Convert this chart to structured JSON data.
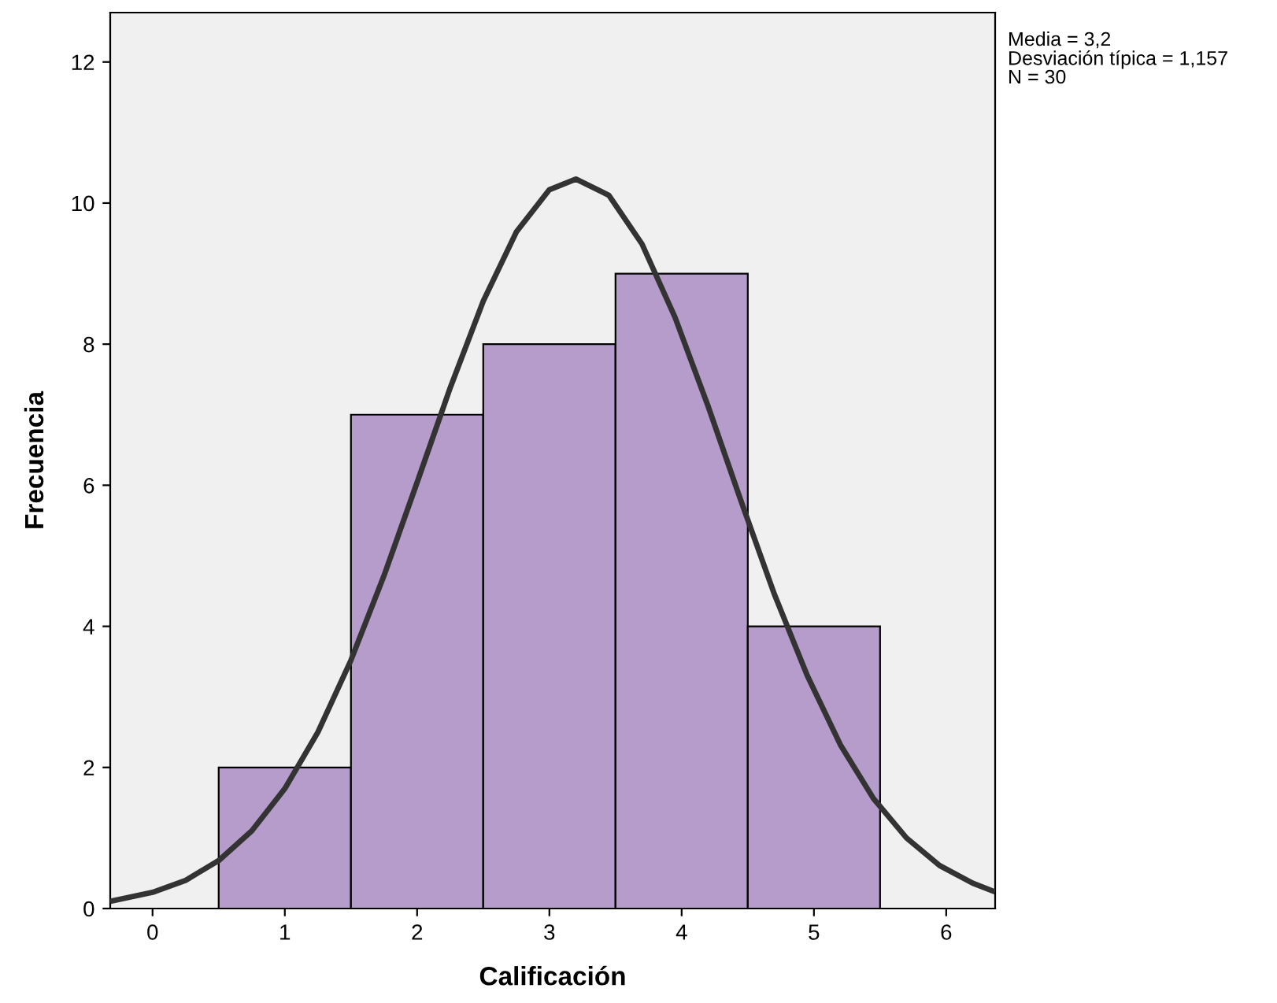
{
  "chart_data": {
    "type": "histogram",
    "xlabel": "Calificación",
    "ylabel": "Frecuencia",
    "series": [
      {
        "bins": [
          0.5,
          1.5,
          2.5,
          3.5,
          4.5,
          5.5
        ],
        "values": [
          2,
          7,
          8,
          9,
          4
        ],
        "color": "#b59ccb"
      },
      {
        "type": "line",
        "color": "#333333",
        "x": [
          -0.3,
          0,
          0.25,
          0.5,
          0.75,
          1.0,
          1.25,
          1.5,
          1.75,
          2.0,
          2.25,
          2.5,
          2.75,
          3.0,
          3.2,
          3.45,
          3.7,
          3.95,
          4.2,
          4.45,
          4.7,
          4.95,
          5.2,
          5.45,
          5.7,
          5.95,
          6.2,
          6.35
        ],
        "values": [
          0.11,
          0.23,
          0.4,
          0.68,
          1.1,
          1.7,
          2.5,
          3.52,
          4.72,
          6.04,
          7.38,
          8.61,
          9.59,
          10.19,
          10.34,
          10.11,
          9.42,
          8.38,
          7.12,
          5.77,
          4.46,
          3.3,
          2.32,
          1.56,
          1.0,
          0.61,
          0.36,
          0.25
        ]
      }
    ],
    "xlim": [
      -0.32,
      6.37
    ],
    "ylim": [
      0,
      12.7
    ],
    "xticks": [
      0,
      1,
      2,
      3,
      4,
      5,
      6
    ],
    "yticks": [
      0,
      2,
      4,
      6,
      8,
      10,
      12
    ],
    "annotations": [
      "Media = 3,2",
      "Desviación típica = 1,157",
      "N = 30"
    ]
  }
}
